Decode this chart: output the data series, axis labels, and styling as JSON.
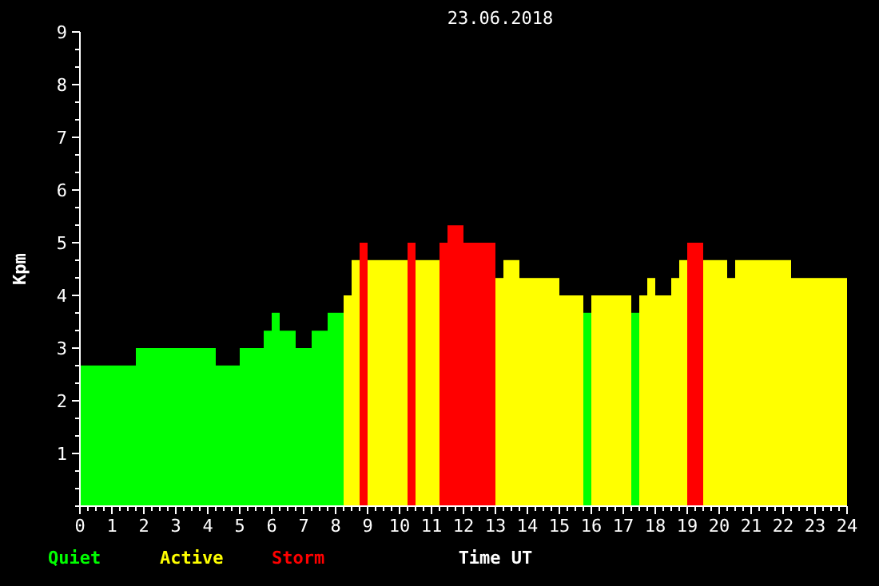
{
  "chart_data": {
    "type": "histogram",
    "title": "23.06.2018",
    "xlabel": "Time UT",
    "ylabel": "Kpm",
    "bins": [
      0,
      1.75,
      4.25,
      5,
      5.75,
      6,
      6.25,
      6.75,
      7.25,
      7.75,
      8.25,
      8.5,
      8.75,
      9,
      10.25,
      10.5,
      11.25,
      11.5,
      12,
      13,
      13.25,
      13.75,
      15,
      15.75,
      16,
      17.25,
      17.5,
      17.75,
      18,
      18.5,
      18.75,
      19,
      19.5,
      20.25,
      20.5,
      22.25,
      24
    ],
    "series": [
      {
        "name": "Quiet",
        "color": "#00ff00",
        "values": [
          2.67,
          3,
          2.67,
          3,
          3.33,
          3.67,
          3.33,
          3,
          3.33,
          3.67,
          null,
          null,
          null,
          null,
          null,
          null,
          null,
          null,
          null,
          null,
          null,
          null,
          null,
          3.67,
          null,
          3.67,
          null,
          null,
          null,
          null,
          null,
          null,
          null,
          null,
          null,
          null
        ]
      },
      {
        "name": "Active",
        "color": "#ffff00",
        "values": [
          null,
          null,
          null,
          null,
          null,
          null,
          null,
          null,
          null,
          null,
          4,
          4.67,
          null,
          4.67,
          null,
          4.67,
          null,
          null,
          null,
          4.33,
          4.67,
          4.33,
          4,
          null,
          4,
          null,
          4,
          4.33,
          4,
          4.33,
          4.67,
          null,
          4.67,
          4.33,
          4.67,
          4.33
        ]
      },
      {
        "name": "Storm",
        "color": "#ff0000",
        "values": [
          null,
          null,
          null,
          null,
          null,
          null,
          null,
          null,
          null,
          null,
          null,
          null,
          5,
          null,
          5,
          null,
          5,
          5.33,
          5,
          null,
          null,
          null,
          null,
          null,
          null,
          null,
          null,
          null,
          null,
          null,
          null,
          5,
          null,
          null,
          null,
          null
        ]
      }
    ],
    "xlim": [
      0,
      24
    ],
    "ylim": [
      0,
      9
    ],
    "xticks": [
      0,
      {
        "value": 0.25,
        "label": null
      },
      {
        "value": 0.5,
        "label": null
      },
      {
        "value": 0.75,
        "label": null
      },
      1,
      {
        "value": 1.25,
        "label": null
      },
      {
        "value": 1.5,
        "label": null
      },
      {
        "value": 1.75,
        "label": null
      },
      2,
      {
        "value": 2.25,
        "label": null
      },
      {
        "value": 2.5,
        "label": null
      },
      {
        "value": 2.75,
        "label": null
      },
      3,
      {
        "value": 3.25,
        "label": null
      },
      {
        "value": 3.5,
        "label": null
      },
      {
        "value": 3.75,
        "label": null
      },
      4,
      {
        "value": 4.25,
        "label": null
      },
      {
        "value": 4.5,
        "label": null
      },
      {
        "value": 4.75,
        "label": null
      },
      5,
      {
        "value": 5.25,
        "label": null
      },
      {
        "value": 5.5,
        "label": null
      },
      {
        "value": 5.75,
        "label": null
      },
      6,
      {
        "value": 6.25,
        "label": null
      },
      {
        "value": 6.5,
        "label": null
      },
      {
        "value": 6.75,
        "label": null
      },
      7,
      {
        "value": 7.25,
        "label": null
      },
      {
        "value": 7.5,
        "label": null
      },
      {
        "value": 7.75,
        "label": null
      },
      8,
      {
        "value": 8.25,
        "label": null
      },
      {
        "value": 8.5,
        "label": null
      },
      {
        "value": 8.75,
        "label": null
      },
      9,
      {
        "value": 9.25,
        "label": null
      },
      {
        "value": 9.5,
        "label": null
      },
      {
        "value": 9.75,
        "label": null
      },
      10,
      {
        "value": 10.25,
        "label": null
      },
      {
        "value": 10.5,
        "label": null
      },
      {
        "value": 10.75,
        "label": null
      },
      11,
      {
        "value": 11.25,
        "label": null
      },
      {
        "value": 11.5,
        "label": null
      },
      {
        "value": 11.75,
        "label": null
      },
      12,
      {
        "value": 12.25,
        "label": null
      },
      {
        "value": 12.5,
        "label": null
      },
      {
        "value": 12.75,
        "label": null
      },
      13,
      {
        "value": 13.25,
        "label": null
      },
      {
        "value": 13.5,
        "label": null
      },
      {
        "value": 13.75,
        "label": null
      },
      14,
      {
        "value": 14.25,
        "label": null
      },
      {
        "value": 14.5,
        "label": null
      },
      {
        "value": 14.75,
        "label": null
      },
      15,
      {
        "value": 15.25,
        "label": null
      },
      {
        "value": 15.5,
        "label": null
      },
      {
        "value": 15.75,
        "label": null
      },
      16,
      {
        "value": 16.25,
        "label": null
      },
      {
        "value": 16.5,
        "label": null
      },
      {
        "value": 16.75,
        "label": null
      },
      17,
      {
        "value": 17.25,
        "label": null
      },
      {
        "value": 17.5,
        "label": null
      },
      {
        "value": 17.75,
        "label": null
      },
      18,
      {
        "value": 18.25,
        "label": null
      },
      {
        "value": 18.5,
        "label": null
      },
      {
        "value": 18.75,
        "label": null
      },
      19,
      {
        "value": 19.25,
        "label": null
      },
      {
        "value": 19.5,
        "label": null
      },
      {
        "value": 19.75,
        "label": null
      },
      20,
      {
        "value": 20.25,
        "label": null
      },
      {
        "value": 20.5,
        "label": null
      },
      {
        "value": 20.75,
        "label": null
      },
      21,
      {
        "value": 21.25,
        "label": null
      },
      {
        "value": 21.5,
        "label": null
      },
      {
        "value": 21.75,
        "label": null
      },
      22,
      {
        "value": 22.25,
        "label": null
      },
      {
        "value": 22.5,
        "label": null
      },
      {
        "value": 22.75,
        "label": null
      },
      23,
      {
        "value": 23.25,
        "label": null
      },
      {
        "value": 23.5,
        "label": null
      },
      {
        "value": 23.75,
        "label": null
      },
      24
    ],
    "yticks": [
      {
        "value": 0,
        "label": null
      },
      {
        "value": 0.333,
        "label": null
      },
      {
        "value": 0.667,
        "label": null
      },
      1,
      {
        "value": 1.333,
        "label": null
      },
      {
        "value": 1.667,
        "label": null
      },
      2,
      {
        "value": 2.333,
        "label": null
      },
      {
        "value": 2.667,
        "label": null
      },
      3,
      {
        "value": 3.333,
        "label": null
      },
      {
        "value": 3.667,
        "label": null
      },
      4,
      {
        "value": 4.333,
        "label": null
      },
      {
        "value": 4.667,
        "label": null
      },
      5,
      {
        "value": 5.333,
        "label": null
      },
      {
        "value": 5.667,
        "label": null
      },
      6,
      {
        "value": 6.333,
        "label": null
      },
      {
        "value": 6.667,
        "label": null
      },
      7,
      {
        "value": 7.333,
        "label": null
      },
      {
        "value": 7.667,
        "label": null
      },
      8,
      {
        "value": 8.333,
        "label": null
      },
      {
        "value": 8.667,
        "label": null
      },
      9
    ],
    "legend": "bottom left"
  }
}
